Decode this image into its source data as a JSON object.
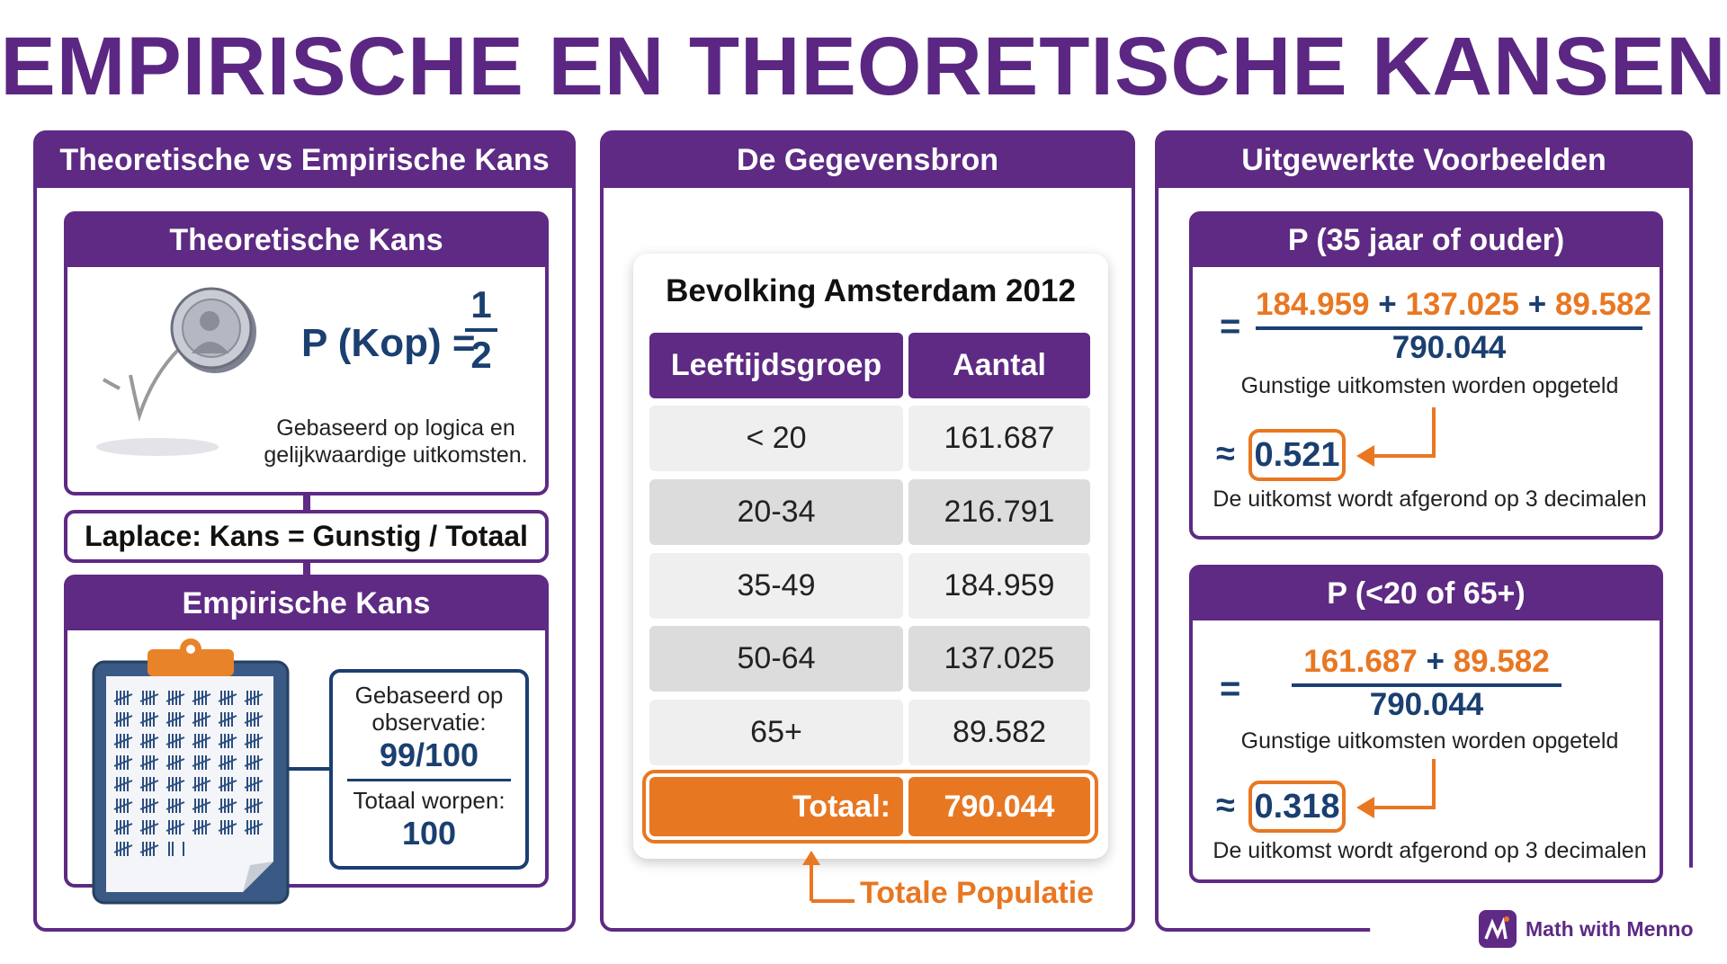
{
  "title": "EMPIRISCHE EN THEORETISCHE KANSEN",
  "colors": {
    "purple": "#5e2a84",
    "navy": "#1a3f70",
    "orange": "#e87722"
  },
  "left": {
    "header": "Theoretische vs Empirische Kans",
    "theoretical": {
      "header": "Theoretische Kans",
      "formula_left": "P (Kop) =",
      "numerator": "1",
      "denominator": "2",
      "note_line1": "Gebaseerd op logica en",
      "note_line2": "gelijkwaardige uitkomsten.",
      "icon": "coin-icon"
    },
    "laplace": "Laplace: Kans = Gunstig / Totaal",
    "empirical": {
      "header": "Empirische Kans",
      "obs_line1": "Gebaseerd op",
      "obs_line2": "observatie:",
      "obs_value": "99/100",
      "total_label": "Totaal worpen:",
      "total_value": "100",
      "icon": "clipboard-tally-icon"
    }
  },
  "middle": {
    "header": "De Gegevensbron",
    "table_title": "Bevolking Amsterdam 2012",
    "columns": [
      "Leeftijdsgroep",
      "Aantal"
    ],
    "rows": [
      [
        "< 20",
        "161.687"
      ],
      [
        "20-34",
        "216.791"
      ],
      [
        "35-49",
        "184.959"
      ],
      [
        "50-64",
        "137.025"
      ],
      [
        "65+",
        "89.582"
      ]
    ],
    "total_label": "Totaal:",
    "total_value": "790.044",
    "annotation": "Totale Populatie"
  },
  "right": {
    "header": "Uitgewerkte Voorbeelden",
    "examples": [
      {
        "header": "P (35 jaar of ouder)",
        "eq": "=",
        "terms": [
          "184.959",
          "137.025",
          "89.582"
        ],
        "plus": "+",
        "denominator": "790.044",
        "note": "Gunstige uitkomsten worden opgeteld",
        "approx": "≈",
        "result": "0.521",
        "rounding": "De uitkomst wordt afgerond op 3 decimalen"
      },
      {
        "header": "P (<20 of 65+)",
        "eq": "=",
        "terms": [
          "161.687",
          "89.582"
        ],
        "plus": "+",
        "denominator": "790.044",
        "note": "Gunstige uitkomsten worden opgeteld",
        "approx": "≈",
        "result": "0.318",
        "rounding": "De uitkomst wordt afgerond op 3 decimalen"
      }
    ]
  },
  "brand": "Math with Menno"
}
